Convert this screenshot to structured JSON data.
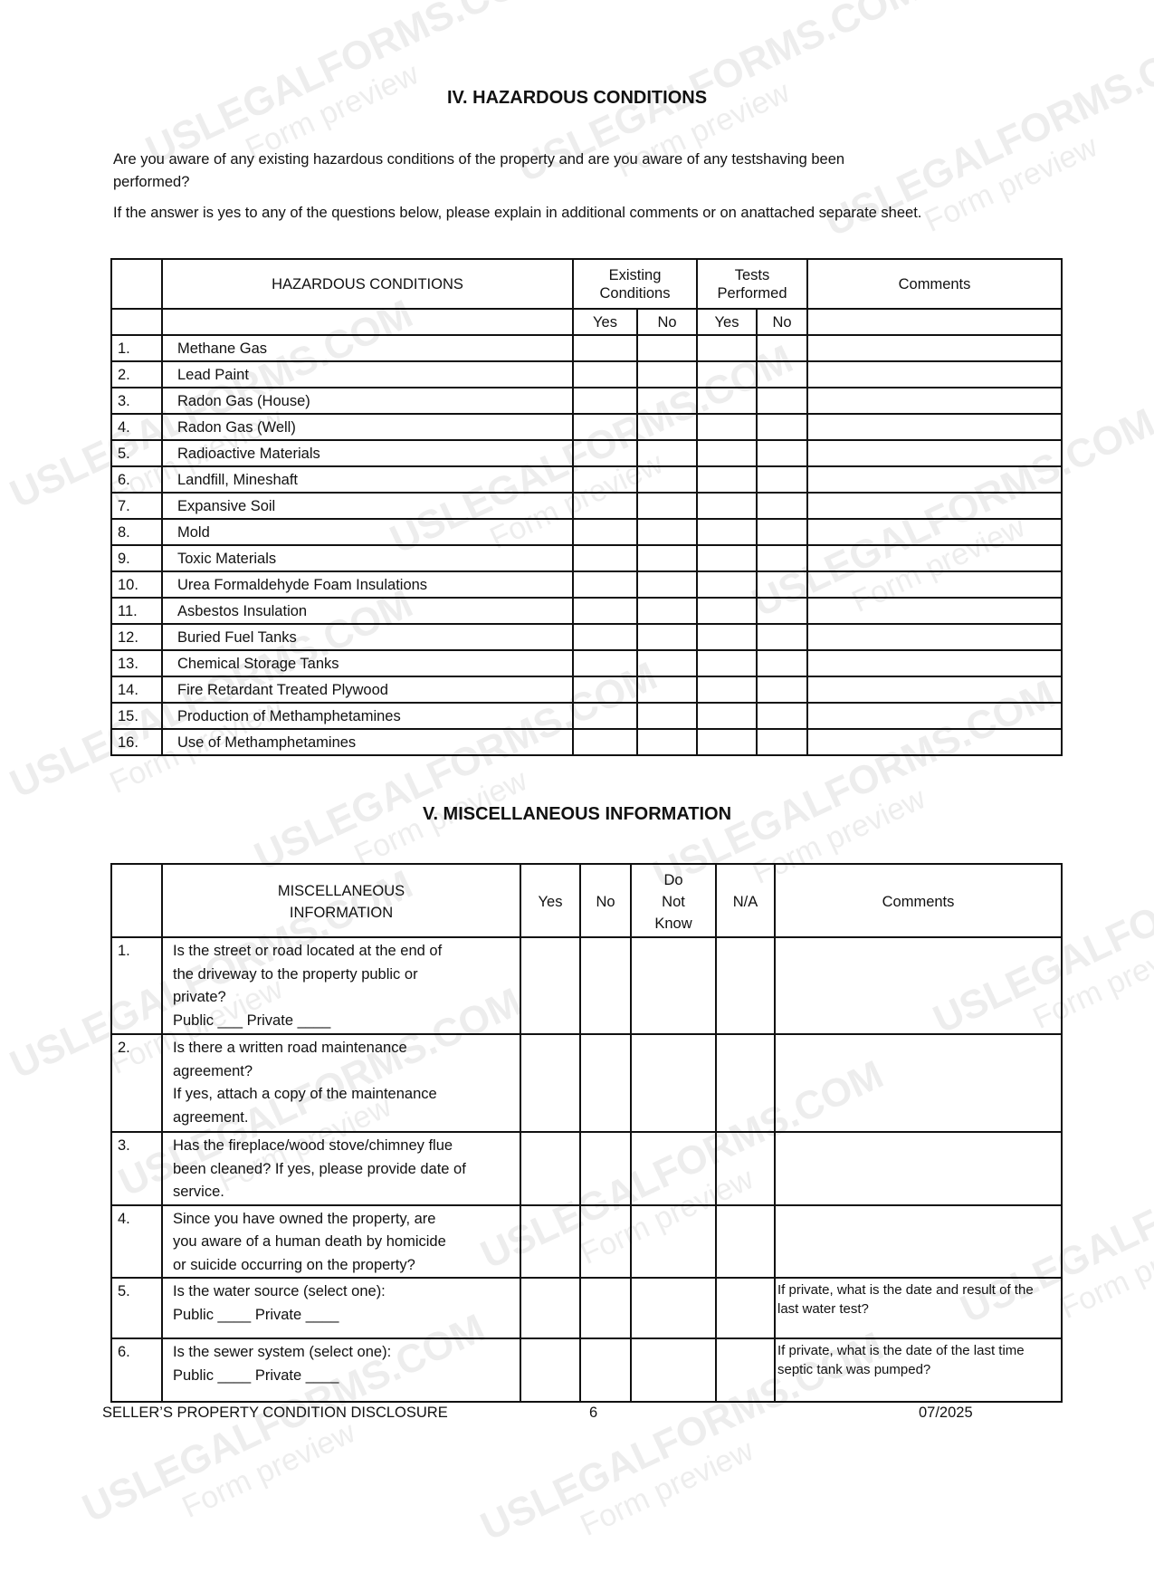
{
  "watermark": {
    "brand": "USLEGALFORMS.COM",
    "sub": "Form preview"
  },
  "section4": {
    "title": "IV. HAZARDOUS CONDITIONS",
    "question": "Are you aware of any existing hazardous conditions of the property and are you aware of any testshaving been",
    "question_cont": "performed?",
    "instruction": "If the answer is yes to any of the questions below, please explain in additional comments or on anattached separate sheet.",
    "headers": {
      "conditions": "HAZARDOUS CONDITIONS",
      "existing1": "Existing",
      "existing2": "Conditions",
      "tests1": "Tests",
      "tests2": "Performed",
      "comments": "Comments",
      "yes": "Yes",
      "no": "No"
    },
    "rows": [
      {
        "n": "1.",
        "label": "Methane Gas"
      },
      {
        "n": "2.",
        "label": "Lead Paint"
      },
      {
        "n": "3.",
        "label": "Radon Gas (House)"
      },
      {
        "n": "4.",
        "label": "Radon Gas (Well)"
      },
      {
        "n": "5.",
        "label": "Radioactive Materials"
      },
      {
        "n": "6.",
        "label": "Landfill, Mineshaft"
      },
      {
        "n": "7.",
        "label": "Expansive Soil"
      },
      {
        "n": "8.",
        "label": "Mold"
      },
      {
        "n": "9.",
        "label": "Toxic Materials"
      },
      {
        "n": "10.",
        "label": "Urea Formaldehyde Foam Insulations"
      },
      {
        "n": "11.",
        "label": "Asbestos Insulation"
      },
      {
        "n": "12.",
        "label": "Buried Fuel Tanks"
      },
      {
        "n": "13.",
        "label": "Chemical Storage Tanks"
      },
      {
        "n": "14.",
        "label": "Fire Retardant Treated Plywood"
      },
      {
        "n": "15.",
        "label": "Production of Methamphetamines"
      },
      {
        "n": "16.",
        "label": "Use of Methamphetamines"
      }
    ]
  },
  "section5": {
    "title": "V. MISCELLANEOUS INFORMATION",
    "headers": {
      "info1": "MISCELLANEOUS",
      "info2": "INFORMATION",
      "yes": "Yes",
      "no": "No",
      "dnk1": "Do",
      "dnk2": "Not",
      "dnk3": "Know",
      "na": "N/A",
      "comments": "Comments"
    },
    "rows": [
      {
        "n": "1.",
        "lines": [
          "Is the street or road located at the end of",
          "the driveway to the property public or",
          "private?",
          "Public ___    Private ____"
        ],
        "comment": ""
      },
      {
        "n": "2.",
        "lines": [
          "Is there a written road maintenance",
          "agreement?",
          "If yes, attach a copy of the maintenance",
          "agreement."
        ],
        "comment": ""
      },
      {
        "n": "3.",
        "lines": [
          "Has the fireplace/wood stove/chimney flue",
          "been cleaned? If yes, please provide date of",
          "service."
        ],
        "comment": ""
      },
      {
        "n": "4.",
        "lines": [
          "Since you have owned the property, are",
          "you aware of a human death by homicide",
          "or suicide occurring on the property?"
        ],
        "comment": ""
      },
      {
        "n": "5.",
        "lines": [
          "Is the water source (select one):",
          "Public ____     Private ____"
        ],
        "comment": "If private, what is the date and result of the last water test?"
      },
      {
        "n": "6.",
        "lines": [
          "Is the sewer system (select one):",
          "Public ____     Private ____"
        ],
        "comment": "If private, what is the date of the last time septic tank was pumped?"
      }
    ]
  },
  "footer": {
    "left": "SELLER’S PROPERTY CONDITION DISCLOSURE",
    "page": "6",
    "date": "07/2025"
  }
}
